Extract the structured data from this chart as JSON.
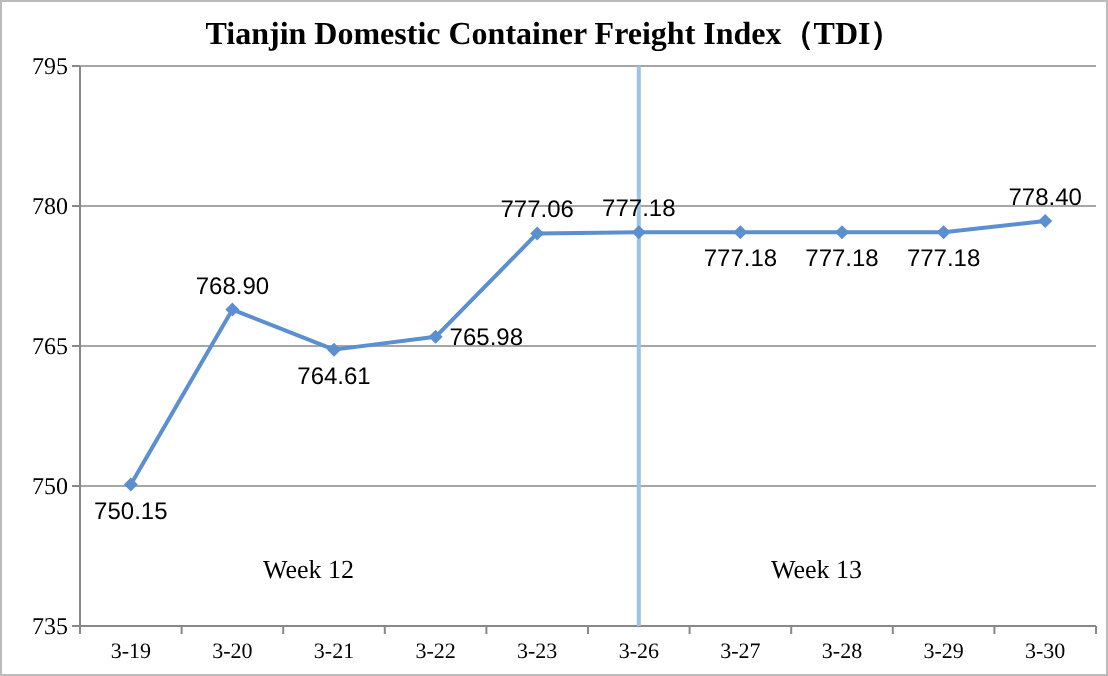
{
  "chart_data": {
    "type": "line",
    "title": "Tianjin Domestic Container Freight Index（TDI）",
    "categories": [
      "3-19",
      "3-20",
      "3-21",
      "3-22",
      "3-23",
      "3-26",
      "3-27",
      "3-28",
      "3-29",
      "3-30"
    ],
    "series": [
      {
        "color": "#5b8fd0",
        "values": [
          750.15,
          768.9,
          764.61,
          765.98,
          777.06,
          777.18,
          777.18,
          777.18,
          777.18,
          778.4
        ]
      }
    ],
    "value_labels": [
      "750.15",
      "768.90",
      "764.61",
      "765.98",
      "777.06",
      "777.18",
      "777.18",
      "777.18",
      "777.18",
      "778.40"
    ],
    "ylim": [
      735,
      795
    ],
    "yticks": [
      735,
      750,
      765,
      780,
      795
    ],
    "grid": "y",
    "marker": "diamond",
    "line_style": "solid",
    "ref_lines": [
      {
        "axis": "x",
        "value": "3-26",
        "color": "#9dc3e6",
        "line_style": "solid"
      }
    ],
    "annotations": [
      "Week 12",
      "Week 13"
    ]
  }
}
